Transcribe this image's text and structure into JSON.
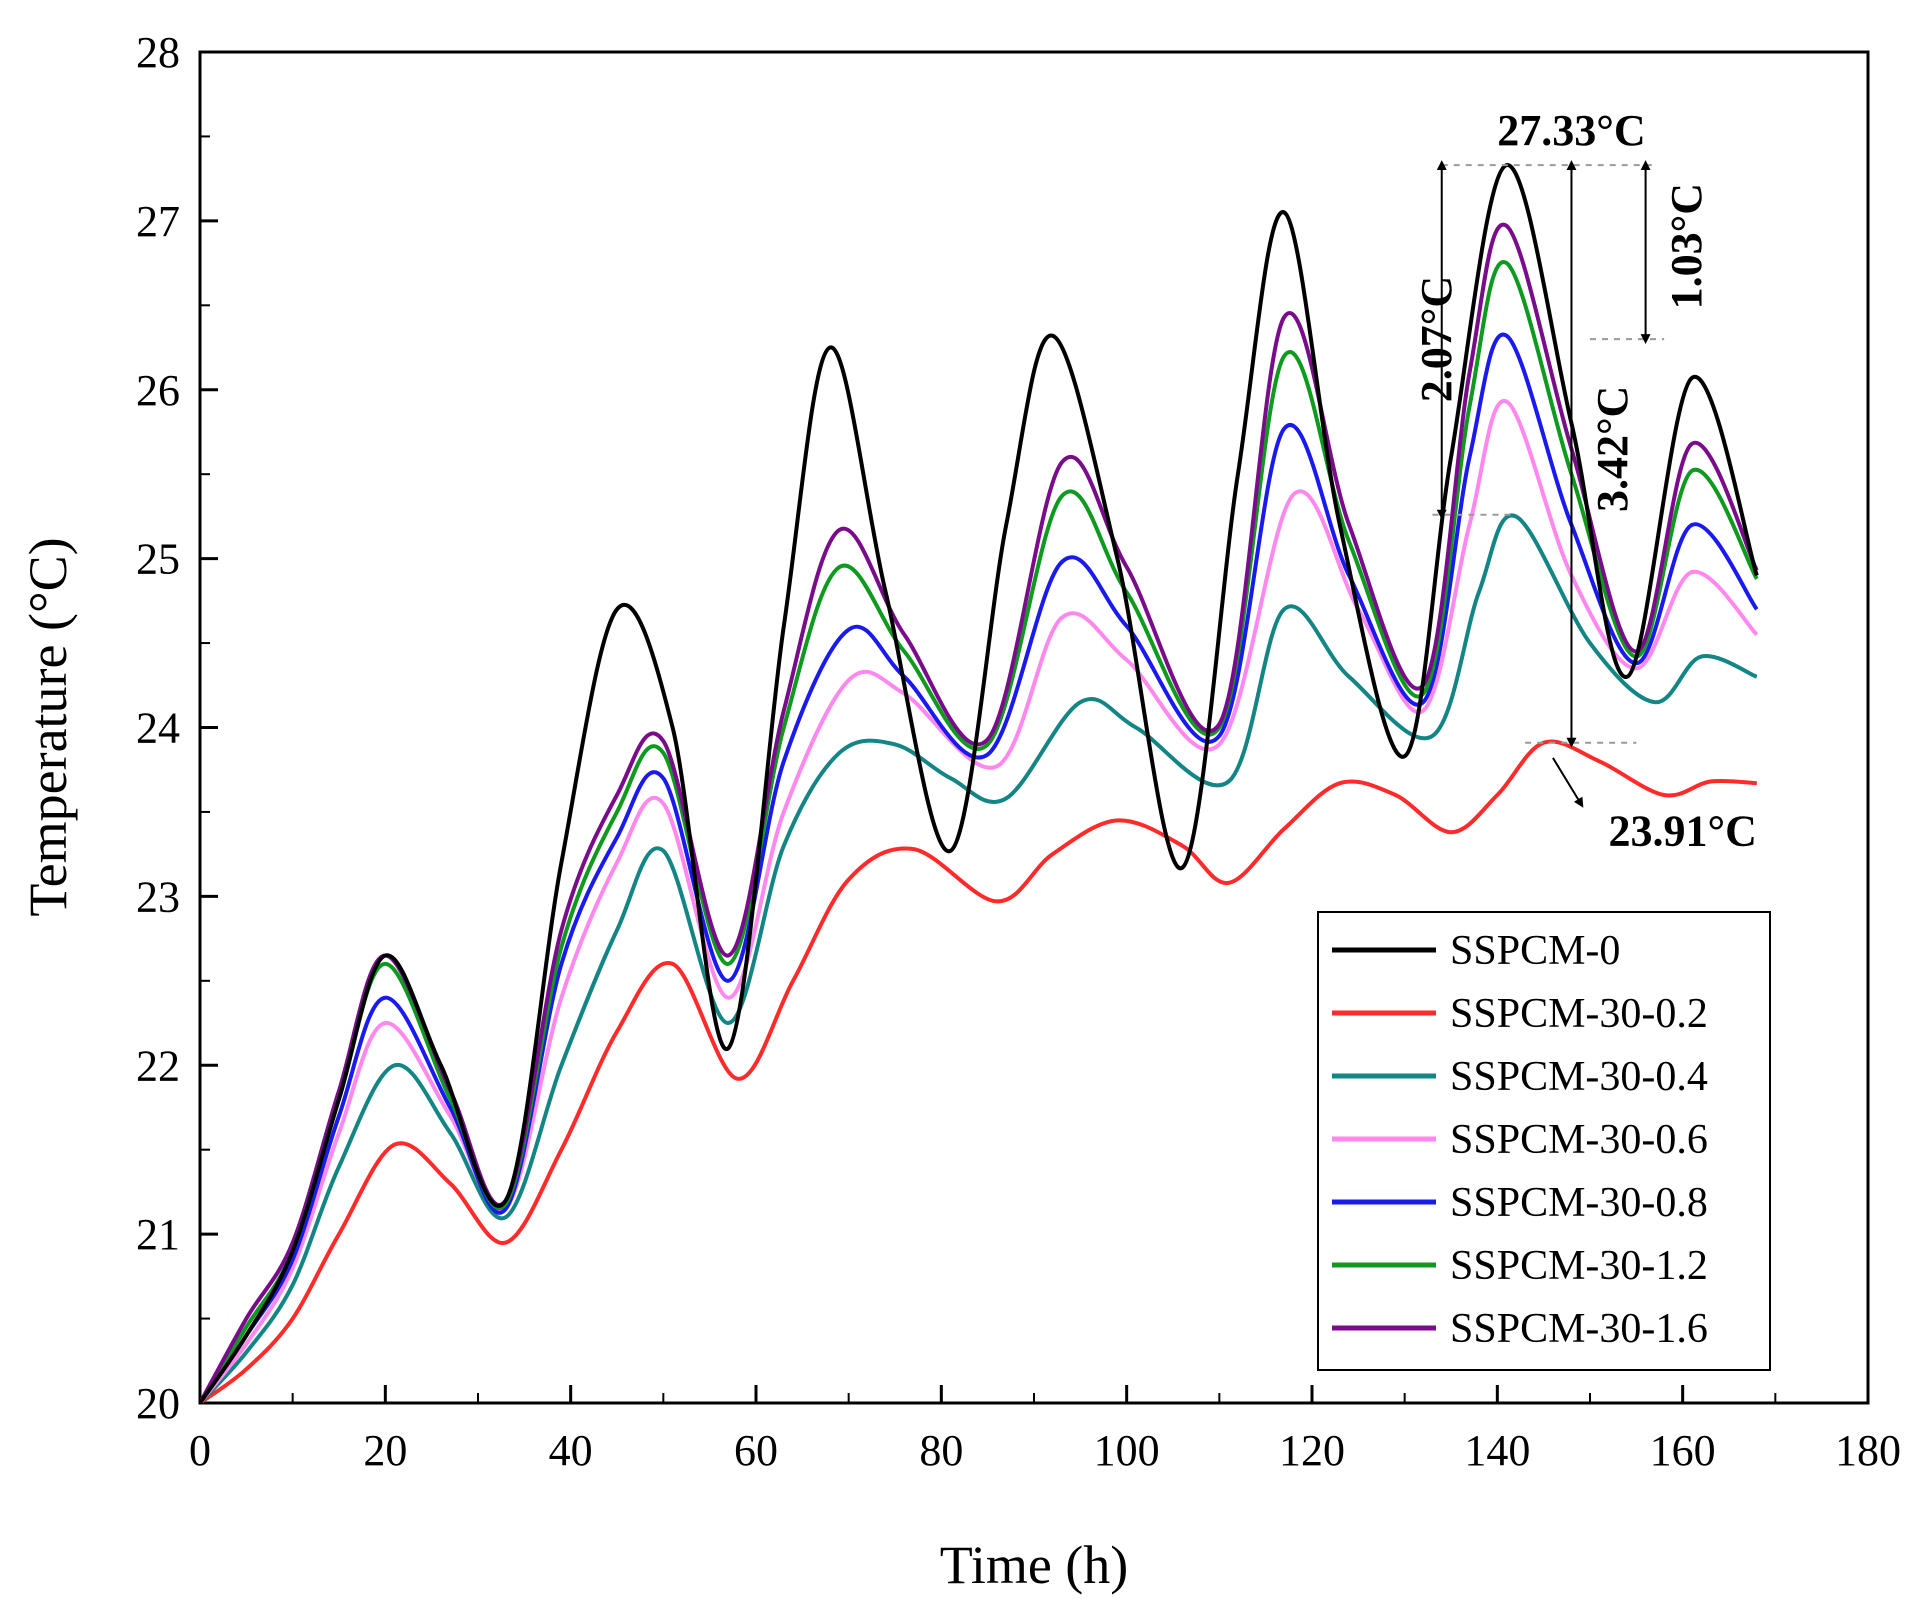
{
  "chart_data": {
    "type": "line",
    "xlabel": "Time (h)",
    "ylabel": "Temperature (°C)",
    "xlim": [
      0,
      180
    ],
    "ylim": [
      20,
      28
    ],
    "xticks": [
      0,
      20,
      40,
      60,
      80,
      100,
      120,
      140,
      160,
      180
    ],
    "yticks": [
      20,
      21,
      22,
      23,
      24,
      25,
      26,
      27,
      28
    ],
    "grid": false,
    "legend_position": "bottom-right",
    "series": [
      {
        "name": "SSPCM-0",
        "color": "#000000",
        "x": [
          0,
          5,
          10,
          15,
          20,
          26,
          33,
          39,
          45,
          51,
          57,
          63,
          68,
          74,
          81,
          87,
          92,
          99,
          106,
          112,
          117,
          123,
          130,
          135,
          141,
          148,
          154,
          161,
          168
        ],
        "y": [
          20.0,
          20.4,
          20.9,
          21.8,
          22.65,
          22.0,
          21.2,
          23.2,
          24.7,
          24.0,
          22.1,
          24.6,
          26.25,
          24.8,
          23.27,
          25.2,
          26.32,
          25.0,
          23.17,
          25.5,
          27.05,
          25.2,
          23.83,
          25.6,
          27.33,
          25.8,
          24.3,
          26.07,
          24.9
        ]
      },
      {
        "name": "SSPCM-30-0.2",
        "color": "#ff2a2a",
        "x": [
          0,
          5,
          10,
          15,
          21,
          27,
          33,
          39,
          45,
          51,
          58,
          64,
          70,
          77,
          86,
          92,
          99,
          106,
          111,
          117,
          123,
          129,
          135,
          140,
          145,
          151,
          158,
          163,
          168
        ],
        "y": [
          20.0,
          20.2,
          20.5,
          21.0,
          21.53,
          21.3,
          20.95,
          21.5,
          22.2,
          22.6,
          21.92,
          22.5,
          23.1,
          23.28,
          22.97,
          23.25,
          23.45,
          23.3,
          23.08,
          23.4,
          23.67,
          23.6,
          23.38,
          23.6,
          23.91,
          23.8,
          23.6,
          23.68,
          23.67
        ]
      },
      {
        "name": "SSPCM-30-0.4",
        "color": "#138585",
        "x": [
          0,
          5,
          10,
          15,
          21,
          27,
          33,
          39,
          45,
          50,
          57,
          63,
          69,
          75,
          81,
          87,
          95,
          101,
          111,
          117,
          124,
          133,
          138,
          142,
          150,
          157,
          162,
          168
        ],
        "y": [
          20.0,
          20.3,
          20.7,
          21.4,
          22.0,
          21.6,
          21.1,
          22.0,
          22.8,
          23.27,
          22.25,
          23.3,
          23.85,
          23.9,
          23.7,
          23.58,
          24.15,
          24.0,
          23.68,
          24.7,
          24.3,
          23.95,
          24.8,
          25.25,
          24.5,
          24.15,
          24.42,
          24.3
        ]
      },
      {
        "name": "SSPCM-30-0.6",
        "color": "#ff88ee",
        "x": [
          0,
          5,
          10,
          15,
          20,
          27,
          33,
          39,
          45,
          50,
          57,
          63,
          70,
          76,
          86,
          93,
          100,
          110,
          118,
          125,
          132,
          137,
          141,
          148,
          155,
          161,
          168
        ],
        "y": [
          20.0,
          20.35,
          20.8,
          21.6,
          22.25,
          21.7,
          21.15,
          22.4,
          23.2,
          23.55,
          22.4,
          23.5,
          24.28,
          24.2,
          23.77,
          24.65,
          24.4,
          23.9,
          25.38,
          24.7,
          24.1,
          25.2,
          25.93,
          24.9,
          24.35,
          24.92,
          24.55
        ]
      },
      {
        "name": "SSPCM-30-0.8",
        "color": "#1a1aee",
        "x": [
          0,
          5,
          10,
          15,
          20,
          27,
          33,
          39,
          45,
          50,
          57,
          63,
          70,
          76,
          85,
          93,
          100,
          110,
          117,
          124,
          132,
          137,
          141,
          148,
          155,
          161,
          168
        ],
        "y": [
          20.0,
          20.4,
          20.85,
          21.7,
          22.4,
          21.75,
          21.15,
          22.6,
          23.35,
          23.7,
          22.5,
          23.8,
          24.58,
          24.3,
          23.84,
          24.98,
          24.6,
          23.95,
          25.77,
          24.9,
          24.15,
          25.6,
          26.32,
          25.2,
          24.38,
          25.2,
          24.7
        ]
      },
      {
        "name": "SSPCM-30-1.2",
        "color": "#0e9a1e",
        "x": [
          0,
          5,
          10,
          15,
          20,
          27,
          33,
          39,
          45,
          50,
          57,
          63,
          69,
          76,
          85,
          93,
          100,
          110,
          117,
          124,
          132,
          137,
          141,
          148,
          155,
          161,
          168
        ],
        "y": [
          20.0,
          20.45,
          20.9,
          21.8,
          22.6,
          21.8,
          21.18,
          22.7,
          23.5,
          23.85,
          22.6,
          24.0,
          24.95,
          24.45,
          23.9,
          25.37,
          24.8,
          24.0,
          26.2,
          25.1,
          24.2,
          25.9,
          26.75,
          25.5,
          24.42,
          25.52,
          24.88
        ]
      },
      {
        "name": "SSPCM-30-1.6",
        "color": "#7a0c8c",
        "x": [
          0,
          5,
          10,
          15,
          20,
          27,
          33,
          39,
          45,
          50,
          57,
          63,
          69,
          76,
          85,
          93,
          100,
          110,
          117,
          124,
          132,
          137,
          141,
          148,
          155,
          161,
          168
        ],
        "y": [
          20.0,
          20.5,
          20.95,
          21.85,
          22.65,
          21.85,
          21.2,
          22.8,
          23.6,
          23.92,
          22.65,
          24.1,
          25.17,
          24.55,
          23.93,
          25.57,
          24.95,
          24.02,
          26.43,
          25.2,
          24.25,
          26.1,
          26.97,
          25.65,
          24.45,
          25.68,
          24.93
        ]
      }
    ],
    "annotations": [
      {
        "text": "27.33°C",
        "x": 148,
        "y": 27.45
      },
      {
        "text": "2.07°C",
        "x": 135,
        "y": 26.3
      },
      {
        "text": "1.03°C",
        "x": 162,
        "y": 26.85
      },
      {
        "text": "3.42°C",
        "x": 154,
        "y": 25.65
      },
      {
        "text": "23.91°C",
        "x": 152,
        "y": 23.3
      }
    ],
    "reference_levels": {
      "peak_top": 27.33,
      "peak_1_03": 26.3,
      "peak_2_07": 25.26,
      "peak_bottom": 23.91
    }
  }
}
